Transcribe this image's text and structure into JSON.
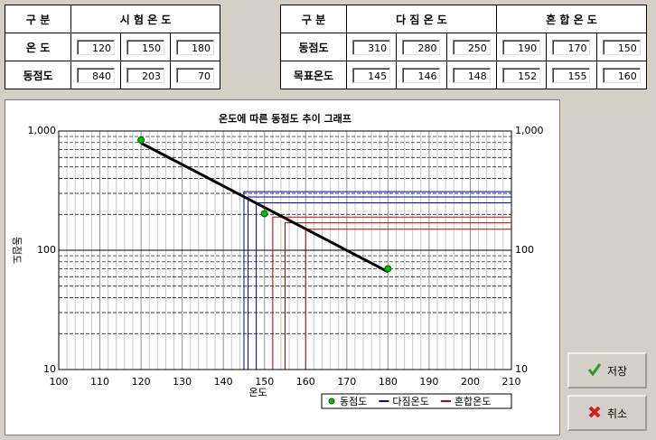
{
  "table1": {
    "header": [
      "구  분",
      "시 험 온 도"
    ],
    "rows": [
      {
        "label": "온  도",
        "values": [
          120,
          150,
          180
        ]
      },
      {
        "label": "동점도",
        "values": [
          840,
          203,
          70
        ]
      }
    ]
  },
  "table2": {
    "header": [
      "구  분",
      "다 짐 온 도",
      "혼 합 온 도"
    ],
    "rows": [
      {
        "label": "동점도",
        "values": [
          310,
          280,
          250,
          190,
          170,
          150
        ]
      },
      {
        "label": "목표온도",
        "values": [
          145,
          146,
          148,
          152,
          155,
          160
        ]
      }
    ]
  },
  "chart_data": {
    "type": "scatter",
    "title": "온도에 따른 동점도 추이 그래프",
    "xlabel": "온도",
    "ylabel": "동점도",
    "log_y": true,
    "grid": true,
    "trendline": true,
    "legend": "bottom-right",
    "xlim": [
      100,
      210
    ],
    "xticks": [
      100,
      110,
      120,
      130,
      140,
      150,
      160,
      170,
      180,
      190,
      200,
      210
    ],
    "xminorticks": [
      102,
      104,
      106,
      108,
      112,
      114,
      116,
      118,
      122,
      124,
      126,
      128,
      132,
      134,
      136,
      138,
      142,
      144,
      146,
      148,
      152,
      154,
      156,
      158,
      162,
      164,
      166,
      168,
      172,
      174,
      176,
      178,
      182,
      184,
      186,
      188,
      192,
      194,
      196,
      198,
      202,
      204,
      206,
      208
    ],
    "ylim": [
      10,
      1000
    ],
    "yticks": [
      {
        "value": 10,
        "label": "10"
      },
      {
        "value": 100,
        "label": "100"
      },
      {
        "value": 1000,
        "label": "1,000"
      }
    ],
    "yminorticks": [
      20,
      30,
      40,
      50,
      60,
      70,
      80,
      90,
      200,
      300,
      400,
      500,
      600,
      700,
      800,
      900
    ],
    "series": [
      {
        "name": "동점도",
        "color": "#00c000",
        "kind": "point",
        "x": [
          120,
          150,
          180
        ],
        "values": [
          840,
          203,
          70
        ]
      },
      {
        "name": "다짐온도",
        "color": "#0000c0",
        "kind": "guide",
        "x": [
          145,
          146,
          148
        ],
        "values": [
          310,
          280,
          250
        ]
      },
      {
        "name": "혼합온도",
        "color": "#c00000",
        "kind": "guide",
        "x": [
          152,
          155,
          160
        ],
        "values": [
          190,
          170,
          150
        ]
      }
    ]
  },
  "buttons": [
    "저장",
    "취소"
  ]
}
